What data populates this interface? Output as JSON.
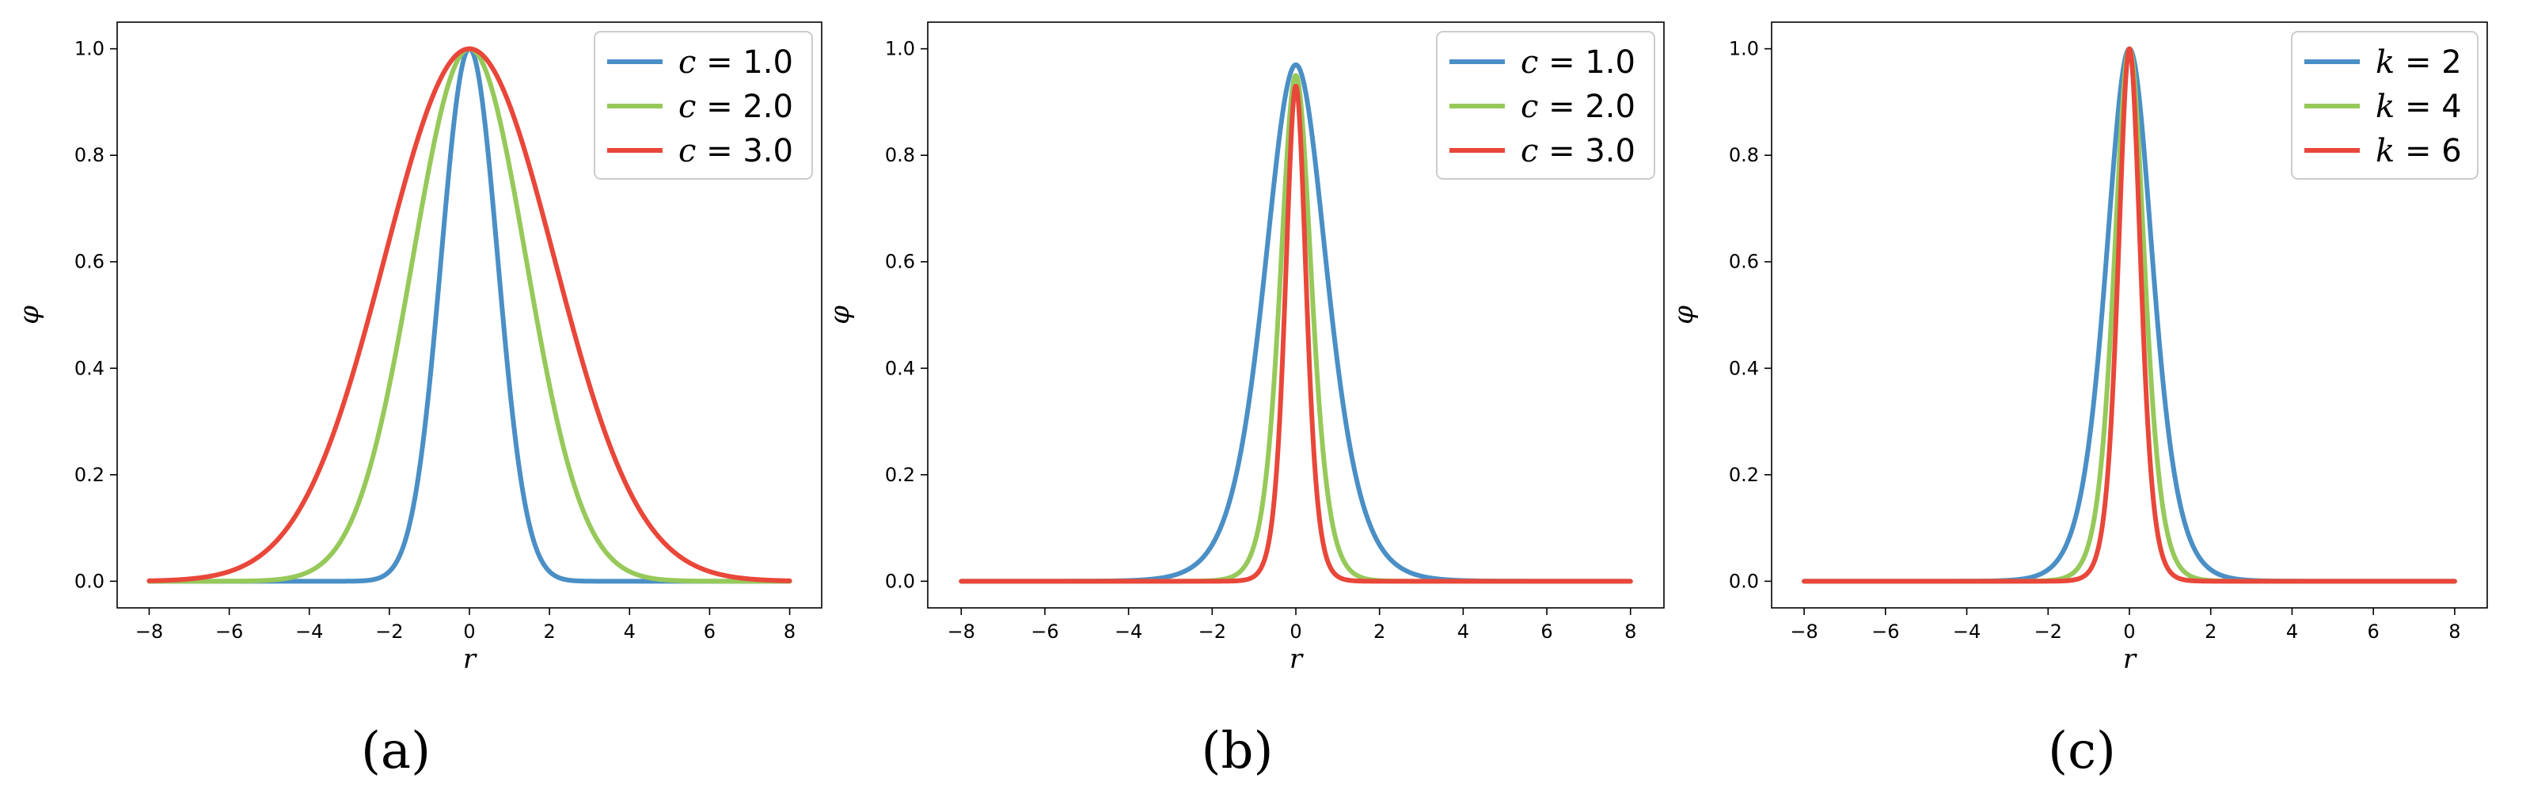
{
  "chart_data": [
    {
      "panel": "a",
      "caption": "(a)",
      "type": "line",
      "xlabel": "r",
      "ylabel": "φ",
      "xlim": [
        -8.8,
        8.8
      ],
      "ylim": [
        -0.05,
        1.05
      ],
      "xticks": [
        -8,
        -6,
        -4,
        -2,
        0,
        2,
        4,
        6,
        8
      ],
      "xtick_labels": [
        "−8",
        "−6",
        "−4",
        "−2",
        "0",
        "2",
        "4",
        "6",
        "8"
      ],
      "yticks": [
        0.0,
        0.2,
        0.4,
        0.6,
        0.8,
        1.0
      ],
      "ytick_labels": [
        "0.0",
        "0.2",
        "0.4",
        "0.6",
        "0.8",
        "1.0"
      ],
      "legend_position": "top-right",
      "series": [
        {
          "name": "c = 1.0",
          "var": "c",
          "value": "1.0",
          "color": "#4a8fc6",
          "shape": "gaussian",
          "param": 1.0,
          "x": [
            -8,
            -2,
            -1,
            0,
            1,
            2,
            8
          ],
          "y": [
            0.0,
            0.02,
            0.37,
            1.0,
            0.37,
            0.02,
            0.0
          ]
        },
        {
          "name": "c = 2.0",
          "var": "c",
          "value": "2.0",
          "color": "#96c95a",
          "shape": "gaussian",
          "param": 2.0,
          "x": [
            -8,
            -4,
            -2,
            0,
            2,
            4,
            8
          ],
          "y": [
            0.0,
            0.02,
            0.37,
            1.0,
            0.37,
            0.02,
            0.0
          ]
        },
        {
          "name": "c = 3.0",
          "var": "c",
          "value": "3.0",
          "color": "#e8473a",
          "shape": "gaussian",
          "param": 3.0,
          "x": [
            -8,
            -6,
            -3,
            0,
            3,
            6,
            8
          ],
          "y": [
            0.0,
            0.02,
            0.37,
            1.0,
            0.37,
            0.02,
            0.0
          ]
        }
      ]
    },
    {
      "panel": "b",
      "caption": "(b)",
      "type": "line",
      "xlabel": "r",
      "ylabel": "φ",
      "xlim": [
        -8.8,
        8.8
      ],
      "ylim": [
        -0.05,
        1.05
      ],
      "xticks": [
        -8,
        -6,
        -4,
        -2,
        0,
        2,
        4,
        6,
        8
      ],
      "xtick_labels": [
        "−8",
        "−6",
        "−4",
        "−2",
        "0",
        "2",
        "4",
        "6",
        "8"
      ],
      "yticks": [
        0.0,
        0.2,
        0.4,
        0.6,
        0.8,
        1.0
      ],
      "ytick_labels": [
        "0.0",
        "0.2",
        "0.4",
        "0.6",
        "0.8",
        "1.0"
      ],
      "legend_position": "top-right",
      "series": [
        {
          "name": "c = 1.0",
          "var": "c",
          "value": "1.0",
          "color": "#4a8fc6",
          "shape": "sech2",
          "param": 1.0,
          "peak": 0.97,
          "x": [
            -8,
            -2,
            -1,
            0,
            1,
            2,
            8
          ],
          "y": [
            0.0,
            0.07,
            0.41,
            0.97,
            0.41,
            0.07,
            0.0
          ]
        },
        {
          "name": "c = 2.0",
          "var": "c",
          "value": "2.0",
          "color": "#96c95a",
          "shape": "sech2",
          "param": 2.0,
          "peak": 0.95,
          "x": [
            -8,
            -1,
            -0.5,
            0,
            0.5,
            1,
            8
          ],
          "y": [
            0.0,
            0.07,
            0.4,
            0.95,
            0.4,
            0.07,
            0.0
          ]
        },
        {
          "name": "c = 3.0",
          "var": "c",
          "value": "3.0",
          "color": "#e8473a",
          "shape": "sech2",
          "param": 3.0,
          "peak": 0.93,
          "x": [
            -8,
            -0.67,
            -0.33,
            0,
            0.33,
            0.67,
            8
          ],
          "y": [
            0.0,
            0.07,
            0.39,
            0.93,
            0.39,
            0.07,
            0.0
          ]
        }
      ]
    },
    {
      "panel": "c",
      "caption": "(c)",
      "type": "line",
      "xlabel": "r",
      "ylabel": "φ",
      "xlim": [
        -8.8,
        8.8
      ],
      "ylim": [
        -0.05,
        1.05
      ],
      "xticks": [
        -8,
        -6,
        -4,
        -2,
        0,
        2,
        4,
        6,
        8
      ],
      "xtick_labels": [
        "−8",
        "−6",
        "−4",
        "−2",
        "0",
        "2",
        "4",
        "6",
        "8"
      ],
      "yticks": [
        0.0,
        0.2,
        0.4,
        0.6,
        0.8,
        1.0
      ],
      "ytick_labels": [
        "0.0",
        "0.2",
        "0.4",
        "0.6",
        "0.8",
        "1.0"
      ],
      "legend_position": "top-right",
      "series": [
        {
          "name": "k = 2",
          "var": "k",
          "value": "2",
          "color": "#4a8fc6",
          "shape": "sech2",
          "param": 1.3,
          "peak": 1.0,
          "x": [
            -8,
            -2,
            -1,
            0,
            1,
            2,
            8
          ],
          "y": [
            0.0,
            0.03,
            0.23,
            1.0,
            0.23,
            0.03,
            0.0
          ]
        },
        {
          "name": "k = 4",
          "var": "k",
          "value": "4",
          "color": "#96c95a",
          "shape": "sech2",
          "param": 2.0,
          "peak": 1.0,
          "x": [
            -8,
            -1,
            -0.5,
            0,
            0.5,
            1,
            8
          ],
          "y": [
            0.0,
            0.07,
            0.42,
            1.0,
            0.42,
            0.07,
            0.0
          ]
        },
        {
          "name": "k = 6",
          "var": "k",
          "value": "6",
          "color": "#e8473a",
          "shape": "sech2",
          "param": 2.7,
          "peak": 1.0,
          "x": [
            -8,
            -1,
            -0.5,
            0,
            0.5,
            1,
            8
          ],
          "y": [
            0.0,
            0.02,
            0.28,
            1.0,
            0.28,
            0.02,
            0.0
          ]
        }
      ]
    }
  ]
}
